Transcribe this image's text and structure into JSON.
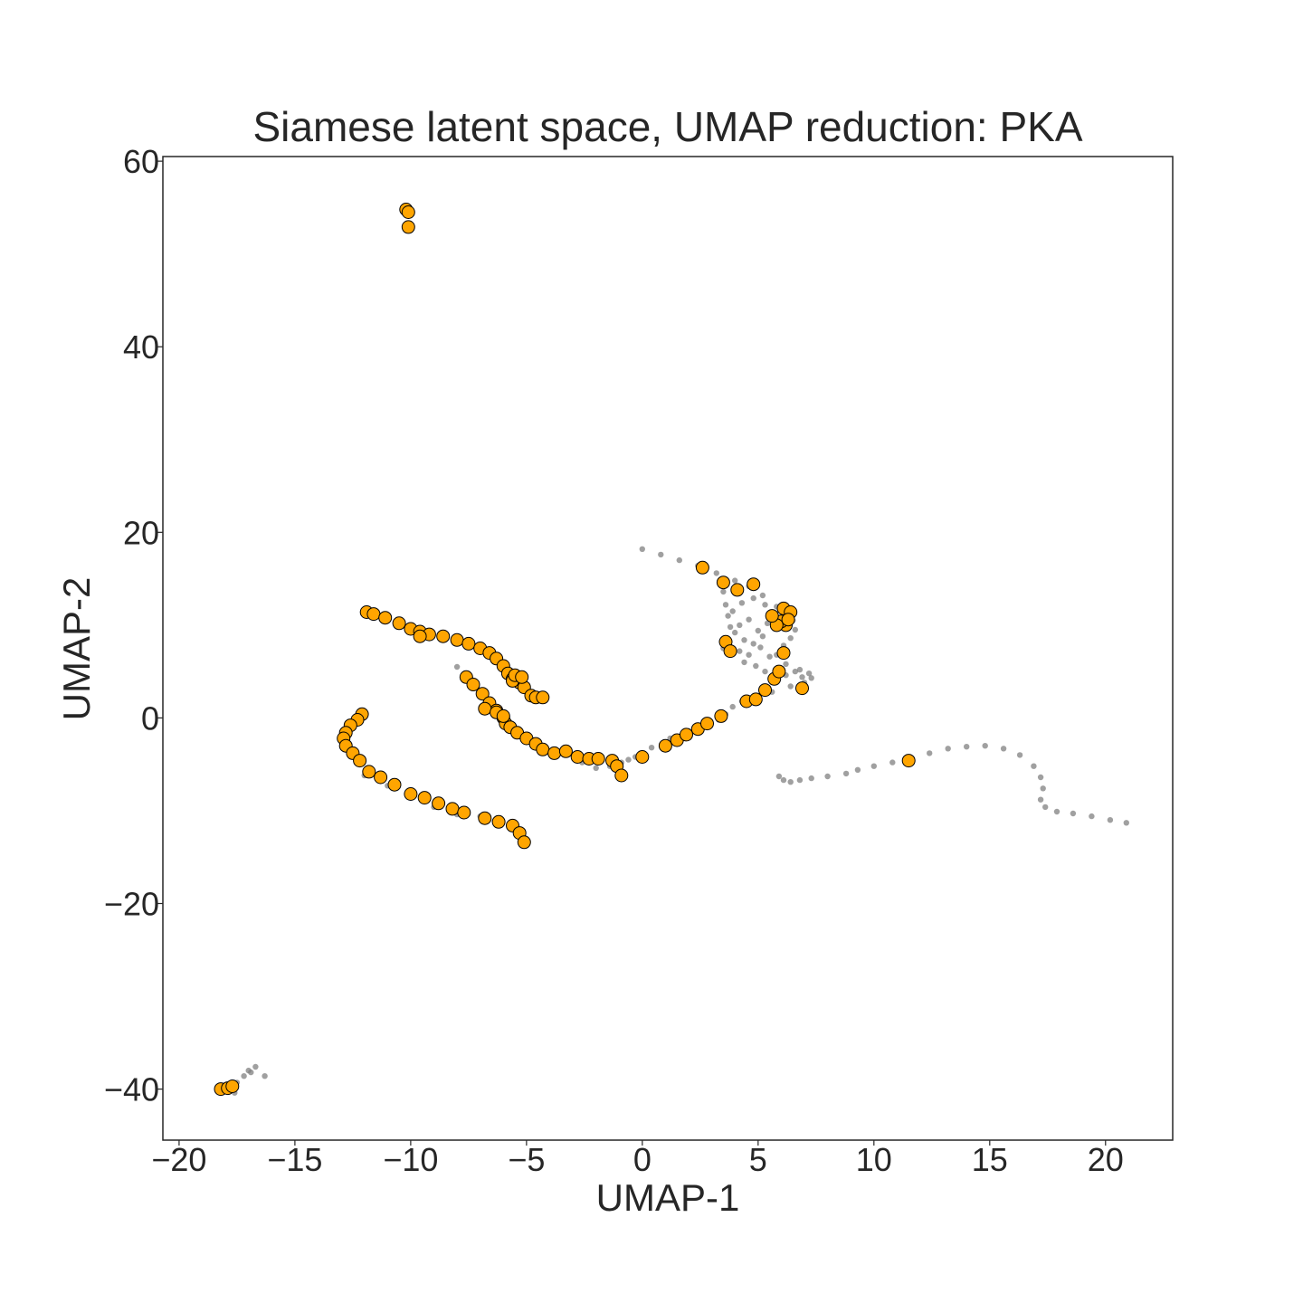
{
  "chart_data": {
    "type": "scatter",
    "title": "Siamese latent space, UMAP reduction: PKA",
    "xlabel": "UMAP-1",
    "ylabel": "UMAP-2",
    "xlim": [
      -20.7,
      22.9
    ],
    "ylim": [
      -45.5,
      60.5
    ],
    "xticks": [
      -20,
      -15,
      -10,
      -5,
      0,
      5,
      10,
      15,
      20
    ],
    "xtick_labels": [
      "−20",
      "−15",
      "−10",
      "−5",
      "0",
      "5",
      "10",
      "15",
      "20"
    ],
    "yticks": [
      -40,
      -20,
      0,
      20,
      40,
      60
    ],
    "ytick_labels": [
      "−40",
      "−20",
      "0",
      "20",
      "40",
      "60"
    ],
    "grid": false,
    "colors": {
      "background_points": "#808080",
      "highlight_fill": "#FFA500",
      "highlight_edge": "#000000",
      "axes": "#262626"
    },
    "series": [
      {
        "kind": "background",
        "color": "#808080",
        "x": [
          0.0,
          0.8,
          1.6,
          2.4,
          3.2,
          4.0,
          4.6,
          5.2,
          5.8,
          6.2,
          6.5,
          6.6,
          6.4,
          6.1,
          5.8,
          6.2,
          6.8,
          7.2,
          7.3,
          7.0,
          6.4,
          5.6,
          4.9,
          4.3,
          3.9,
          3.6,
          3.5,
          3.6,
          3.8,
          3.7,
          3.6,
          3.5,
          3.9,
          4.3,
          4.8,
          5.3,
          5.6,
          4.2,
          4.6,
          5.0,
          5.4,
          5.8,
          4.4,
          4.8,
          5.2,
          4.2,
          4.6,
          5.1,
          5.5,
          4.0,
          4.4,
          4.9,
          5.3,
          6.2,
          6.6,
          6.9,
          3.3,
          2.6,
          2.0,
          1.2,
          0.4,
          -0.3,
          -0.9,
          -1.4,
          -2.0,
          -2.6,
          -1.0,
          -0.6,
          5.9,
          6.1,
          6.4,
          6.8,
          7.3,
          8.0,
          8.8,
          9.3,
          10.0,
          10.8,
          11.6,
          12.4,
          13.2,
          14.0,
          14.8,
          15.6,
          16.3,
          16.9,
          17.2,
          17.3,
          17.2,
          17.4,
          17.9,
          18.6,
          19.4,
          20.2,
          20.9,
          -12.8,
          -12.0,
          -11.0,
          -10.0,
          -9.0,
          -8.0,
          -7.0,
          -6.2,
          -8.0,
          -7.4,
          -6.0,
          -5.2,
          -18.2,
          -17.8,
          -17.5,
          -17.2,
          -17.0,
          -16.7,
          -17.6,
          -16.9,
          -16.3
        ],
        "y": [
          18.2,
          17.6,
          17.0,
          16.4,
          15.6,
          14.8,
          14.2,
          13.2,
          12.0,
          11.2,
          10.5,
          9.5,
          8.6,
          7.8,
          6.8,
          5.8,
          5.2,
          4.8,
          4.3,
          3.8,
          3.4,
          2.8,
          2.3,
          1.8,
          1.2,
          0.4,
          7.5,
          8.5,
          9.8,
          11.0,
          12.2,
          13.6,
          11.5,
          12.4,
          12.9,
          12.2,
          10.8,
          10.0,
          10.6,
          9.4,
          10.2,
          9.6,
          8.4,
          8.0,
          8.8,
          7.2,
          6.8,
          7.6,
          6.6,
          9.2,
          6.0,
          5.6,
          5.0,
          4.6,
          5.0,
          4.4,
          -0.2,
          -0.8,
          -1.4,
          -2.2,
          -3.2,
          -4.2,
          -4.8,
          -5.2,
          -5.4,
          -4.8,
          -6.4,
          -4.5,
          -6.3,
          -6.7,
          -6.9,
          -6.7,
          -6.5,
          -6.3,
          -6.0,
          -5.6,
          -5.2,
          -4.8,
          -4.3,
          -3.8,
          -3.3,
          -3.1,
          -3.0,
          -3.3,
          -4.0,
          -5.2,
          -6.4,
          -7.6,
          -8.8,
          -9.6,
          -10.1,
          -10.3,
          -10.6,
          -11.0,
          -11.3,
          -3.0,
          -6.2,
          -7.3,
          -8.4,
          -9.6,
          -10.4,
          -10.6,
          -11.5,
          5.5,
          4.2,
          0.2,
          3.6,
          -40.0,
          -39.6,
          -39.3,
          -38.6,
          -38.0,
          -37.6,
          -40.4,
          -38.2,
          -38.6
        ]
      },
      {
        "kind": "highlight",
        "color": "#FFA500",
        "edgecolor": "#000000",
        "x": [
          -10.2,
          -10.1,
          -10.1,
          -11.9,
          -11.6,
          -11.1,
          -10.5,
          -10.0,
          -9.6,
          -9.2,
          -8.6,
          -8.0,
          -7.5,
          -7.0,
          -6.6,
          -6.3,
          -6.0,
          -5.8,
          -5.6,
          -5.3,
          -5.1,
          -5.6,
          -5.5,
          -5.2,
          -4.8,
          -4.6,
          -4.3,
          -9.6,
          -7.6,
          -7.3,
          -6.9,
          -6.6,
          -6.3,
          -6.0,
          -5.9,
          -5.7,
          -5.4,
          -5.0,
          -4.6,
          -4.3,
          -3.8,
          -3.3,
          -2.8,
          -2.3,
          -1.9,
          -1.3,
          -1.1,
          -0.9,
          -6.8,
          -6.3,
          -6.0,
          -12.1,
          -12.3,
          -12.6,
          -12.8,
          -12.9,
          -12.8,
          -12.5,
          -12.2,
          -11.8,
          -11.3,
          -10.7,
          -10.0,
          -9.4,
          -8.8,
          -8.2,
          -7.7,
          -6.8,
          -6.2,
          -5.6,
          -5.3,
          -5.1,
          0.0,
          1.0,
          1.5,
          1.9,
          2.4,
          2.8,
          3.4,
          4.5,
          4.9,
          5.3,
          5.7,
          5.9,
          6.1,
          6.9,
          6.2,
          6.0,
          5.8,
          5.6,
          6.1,
          6.4,
          6.3,
          3.6,
          3.8,
          4.1,
          3.5,
          2.6,
          4.8,
          11.5,
          -18.2,
          -17.9,
          -17.7
        ],
        "y": [
          54.8,
          54.5,
          52.9,
          11.4,
          11.2,
          10.8,
          10.2,
          9.6,
          9.3,
          9.0,
          8.8,
          8.4,
          8.0,
          7.5,
          7.0,
          6.4,
          5.6,
          4.8,
          4.2,
          3.8,
          3.3,
          4.0,
          4.6,
          4.4,
          2.4,
          2.2,
          2.2,
          8.8,
          4.4,
          3.6,
          2.6,
          1.6,
          0.8,
          0.0,
          -0.6,
          -1.0,
          -1.6,
          -2.2,
          -2.8,
          -3.4,
          -3.8,
          -3.6,
          -4.2,
          -4.4,
          -4.4,
          -4.6,
          -5.2,
          -6.2,
          1.0,
          0.6,
          0.2,
          0.4,
          -0.2,
          -0.8,
          -1.6,
          -2.2,
          -3.0,
          -3.8,
          -4.6,
          -5.8,
          -6.4,
          -7.2,
          -8.2,
          -8.6,
          -9.2,
          -9.8,
          -10.2,
          -10.8,
          -11.2,
          -11.6,
          -12.4,
          -13.4,
          -4.2,
          -3.0,
          -2.4,
          -1.8,
          -1.2,
          -0.6,
          0.2,
          1.8,
          2.0,
          3.0,
          4.2,
          5.0,
          7.0,
          3.2,
          10.0,
          10.4,
          10.0,
          11.0,
          11.8,
          11.4,
          10.6,
          8.2,
          7.2,
          13.8,
          14.6,
          16.2,
          14.4,
          -4.6,
          -40.0,
          -39.9,
          -39.7
        ]
      }
    ]
  }
}
